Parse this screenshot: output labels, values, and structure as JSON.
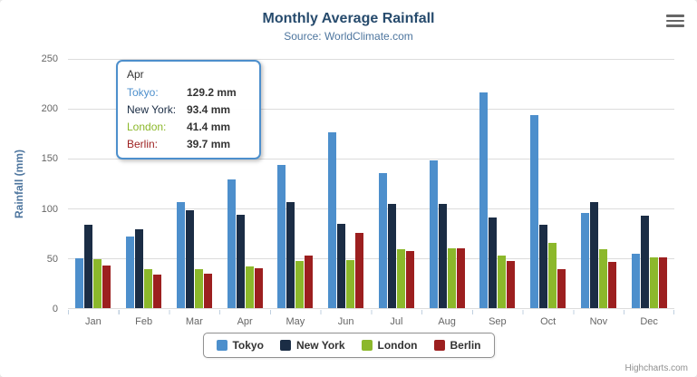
{
  "chart": {
    "title": "Monthly Average Rainfall",
    "subtitle": "Source: WorldClimate.com",
    "ylabel": "Rainfall (mm)"
  },
  "chart_data": {
    "type": "bar",
    "title": "Monthly Average Rainfall",
    "subtitle": "Source: WorldClimate.com",
    "xlabel": "",
    "ylabel": "Rainfall (mm)",
    "ylim": [
      0,
      250
    ],
    "yticks": [
      0,
      50,
      100,
      150,
      200,
      250
    ],
    "grid": true,
    "legend_position": "bottom",
    "categories": [
      "Jan",
      "Feb",
      "Mar",
      "Apr",
      "May",
      "Jun",
      "Jul",
      "Aug",
      "Sep",
      "Oct",
      "Nov",
      "Dec"
    ],
    "series": [
      {
        "name": "Tokyo",
        "color": "#4d8fcc",
        "values": [
          49.9,
          71.5,
          106.4,
          129.2,
          144.0,
          176.0,
          135.6,
          148.5,
          216.4,
          194.1,
          95.6,
          54.4
        ]
      },
      {
        "name": "New York",
        "color": "#1b2d45",
        "values": [
          83.6,
          78.8,
          98.5,
          93.4,
          106.0,
          84.5,
          105.0,
          104.3,
          91.2,
          83.5,
          106.6,
          92.3
        ]
      },
      {
        "name": "London",
        "color": "#8cb82b",
        "values": [
          48.9,
          38.8,
          39.3,
          41.4,
          47.0,
          48.3,
          59.0,
          59.6,
          52.4,
          65.2,
          59.3,
          51.2
        ]
      },
      {
        "name": "Berlin",
        "color": "#9c1f1f",
        "values": [
          42.4,
          33.2,
          34.5,
          39.7,
          52.6,
          75.5,
          57.4,
          60.4,
          47.6,
          39.1,
          46.8,
          51.1
        ]
      }
    ]
  },
  "tooltip": {
    "header": "Apr",
    "rows": [
      {
        "name": "Tokyo:",
        "value": "129.2 mm"
      },
      {
        "name": "New York:",
        "value": "93.4 mm"
      },
      {
        "name": "London:",
        "value": "41.4 mm"
      },
      {
        "name": "Berlin:",
        "value": "39.7 mm"
      }
    ]
  },
  "legend": {
    "items": [
      {
        "label": "Tokyo",
        "color": "#4d8fcc"
      },
      {
        "label": "New York",
        "color": "#1b2d45"
      },
      {
        "label": "London",
        "color": "#8cb82b"
      },
      {
        "label": "Berlin",
        "color": "#9c1f1f"
      }
    ]
  },
  "credits": "Highcharts.com"
}
